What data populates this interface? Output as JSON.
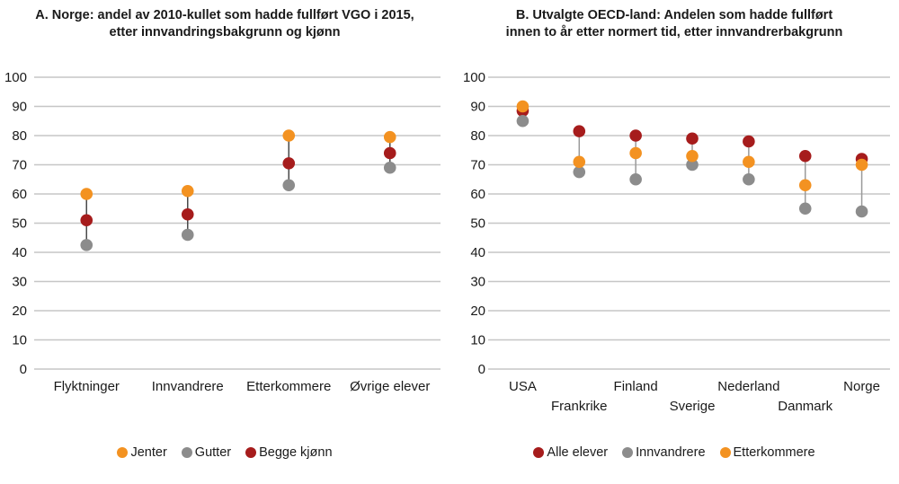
{
  "page": {
    "background": "#ffffff"
  },
  "colors": {
    "orange": "#F39221",
    "dark_red": "#A61C1C",
    "gray": "#8C8C8C",
    "gridline": "#C6C6C6",
    "text": "#1A1A1A"
  },
  "chart_data": [
    {
      "id": "panel-a",
      "type": "dot-range",
      "title": "A. Norge: andel av 2010-kullet som hadde fullført VGO i 2015, etter innvandringsbakgrunn og kjønn",
      "title_lines": [
        "A. Norge: andel av 2010-kullet som hadde fullført VGO i 2015,",
        "etter innvandringsbakgrunn og kjønn"
      ],
      "categories": [
        "Flyktninger",
        "Innvandrere",
        "Etterkommere",
        "Øvrige elever"
      ],
      "series": [
        {
          "name": "Jenter",
          "color": "#F39221",
          "values": [
            60,
            61,
            80,
            79.5
          ]
        },
        {
          "name": "Gutter",
          "color": "#8C8C8C",
          "values": [
            42.5,
            46,
            63,
            69
          ]
        },
        {
          "name": "Begge kjønn",
          "color": "#A61C1C",
          "values": [
            51,
            53,
            70.5,
            74
          ]
        }
      ],
      "ylim": [
        0,
        100
      ],
      "ytick_step": 10,
      "xlabel": "",
      "ylabel": "",
      "grid": "horizontal",
      "legend_position": "bottom",
      "connector_color": "#4A4A4A",
      "label_rows": 1,
      "left_margin": 40,
      "grid_left": 38
    },
    {
      "id": "panel-b",
      "type": "dot-range",
      "title": "B. Utvalgte OECD-land: Andelen som hadde fullført innen to år etter normert tid, etter innvandrerbakgrunn",
      "title_lines": [
        "B. Utvalgte OECD-land: Andelen som hadde fullført",
        "innen to år etter normert tid, etter innvandrerbakgrunn"
      ],
      "categories": [
        "USA",
        "Frankrike",
        "Finland",
        "Sverige",
        "Nederland",
        "Danmark",
        "Norge"
      ],
      "series": [
        {
          "name": "Alle elever",
          "color": "#A61C1C",
          "values": [
            88.5,
            81.5,
            80,
            79,
            78,
            73,
            72
          ]
        },
        {
          "name": "Innvandrere",
          "color": "#8C8C8C",
          "values": [
            85,
            67.5,
            65,
            70,
            65,
            55,
            54
          ]
        },
        {
          "name": "Etterkommere",
          "color": "#F39221",
          "values": [
            90,
            71,
            74,
            73,
            71,
            63,
            70
          ]
        }
      ],
      "ylim": [
        0,
        100
      ],
      "ytick_step": 10,
      "xlabel": "",
      "ylabel": "",
      "grid": "horizontal",
      "legend_position": "bottom",
      "connector_color": "#9A9A9A",
      "label_rows": 2,
      "left_margin": 50,
      "grid_left": 43
    }
  ]
}
